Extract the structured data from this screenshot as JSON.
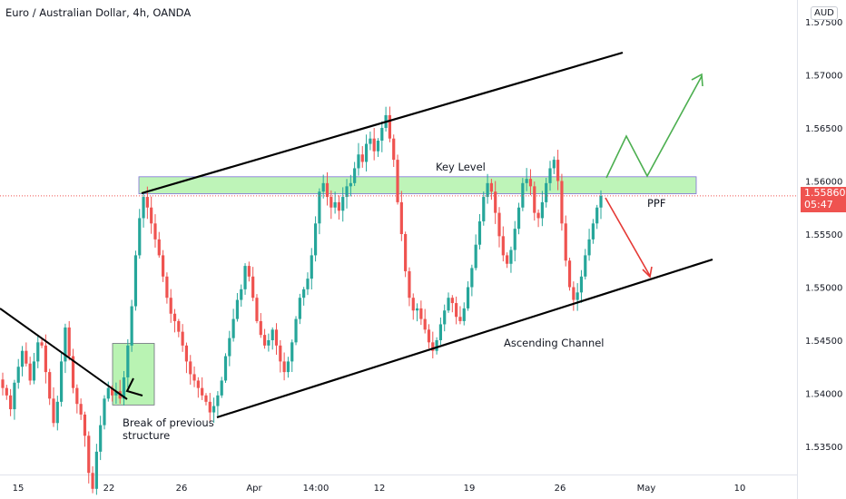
{
  "header": {
    "title": "Euro / Australian Dollar, 4h, OANDA",
    "currency": "AUD"
  },
  "price_tag": {
    "price": "1.55860",
    "countdown": "05:47",
    "color": "#ef5350"
  },
  "annotations": {
    "key_level": "Key Level",
    "ppf": "PPF",
    "ascending_channel": "Ascending Channel",
    "break_line1": "Break of previous",
    "break_line2": "structure"
  },
  "colors": {
    "up_candle": "#26a69a",
    "down_candle": "#ef5350",
    "key_zone_fill": "#a8f0a0",
    "green_arrow": "#4caf50",
    "red_arrow": "#e53935"
  },
  "chart_data": {
    "type": "candlestick",
    "title": "Euro / Australian Dollar, 4h, OANDA",
    "ylim": [
      1.532,
      1.5755
    ],
    "y_ticks": [
      "1.57500",
      "1.57000",
      "1.56500",
      "1.56000",
      "1.55500",
      "1.55000",
      "1.54500",
      "1.54000",
      "1.53500"
    ],
    "x_ticks": [
      "15",
      "22",
      "26",
      "Apr",
      "14:00",
      "12",
      "19",
      "26",
      "May",
      "10"
    ],
    "current_price": 1.5586,
    "key_level_zone": [
      1.5588,
      1.5604
    ],
    "ascending_channel": {
      "upper": [
        {
          "x": "22",
          "y": 1.5586
        },
        {
          "x": "May",
          "y": 1.5719
        }
      ],
      "lower": [
        {
          "x": "26",
          "y": 1.5378
        },
        {
          "x": "May",
          "y": 1.5524
        }
      ]
    },
    "prior_trendline": [
      {
        "x": "15",
        "y": 1.549
      },
      {
        "x": "22",
        "y": 1.5392
      }
    ],
    "projection_up": [
      1.5586,
      1.5641,
      1.5602,
      1.5698
    ],
    "projection_down": [
      1.5586,
      1.5508
    ],
    "closes": [
      1.5405,
      1.5398,
      1.5385,
      1.541,
      1.5425,
      1.544,
      1.5428,
      1.5412,
      1.543,
      1.5448,
      1.5445,
      1.542,
      1.5395,
      1.5372,
      1.5392,
      1.543,
      1.5462,
      1.5435,
      1.5405,
      1.539,
      1.538,
      1.536,
      1.5325,
      1.531,
      1.5345,
      1.537,
      1.5395,
      1.5405,
      1.5398,
      1.5402,
      1.5395,
      1.5415,
      1.5445,
      1.5482,
      1.553,
      1.5565,
      1.5585,
      1.5575,
      1.556,
      1.5545,
      1.553,
      1.551,
      1.549,
      1.5475,
      1.5468,
      1.5458,
      1.5445,
      1.543,
      1.5418,
      1.5412,
      1.5405,
      1.5398,
      1.5392,
      1.5382,
      1.5388,
      1.5398,
      1.5412,
      1.5435,
      1.5452,
      1.547,
      1.5488,
      1.5498,
      1.552,
      1.551,
      1.549,
      1.5468,
      1.5455,
      1.5445,
      1.545,
      1.546,
      1.5445,
      1.543,
      1.542,
      1.543,
      1.5448,
      1.547,
      1.549,
      1.5498,
      1.5508,
      1.553,
      1.556,
      1.559,
      1.5598,
      1.5585,
      1.5575,
      1.558,
      1.5572,
      1.5585,
      1.5595,
      1.5598,
      1.5612,
      1.5625,
      1.5618,
      1.5635,
      1.564,
      1.5628,
      1.5638,
      1.565,
      1.5662,
      1.564,
      1.562,
      1.558,
      1.555,
      1.5515,
      1.549,
      1.5478,
      1.548,
      1.547,
      1.546,
      1.5448,
      1.544,
      1.545,
      1.5465,
      1.5478,
      1.549,
      1.5485,
      1.5472,
      1.5468,
      1.548,
      1.55,
      1.5518,
      1.554,
      1.5562,
      1.5585,
      1.5598,
      1.559,
      1.557,
      1.5548,
      1.553,
      1.5522,
      1.5535,
      1.5555,
      1.5575,
      1.5598,
      1.5602,
      1.5595,
      1.557,
      1.5565,
      1.558,
      1.5598,
      1.5612,
      1.562,
      1.56,
      1.556,
      1.5525,
      1.55,
      1.5488,
      1.5495,
      1.551,
      1.553,
      1.5545,
      1.556,
      1.5575,
      1.5586
    ]
  }
}
